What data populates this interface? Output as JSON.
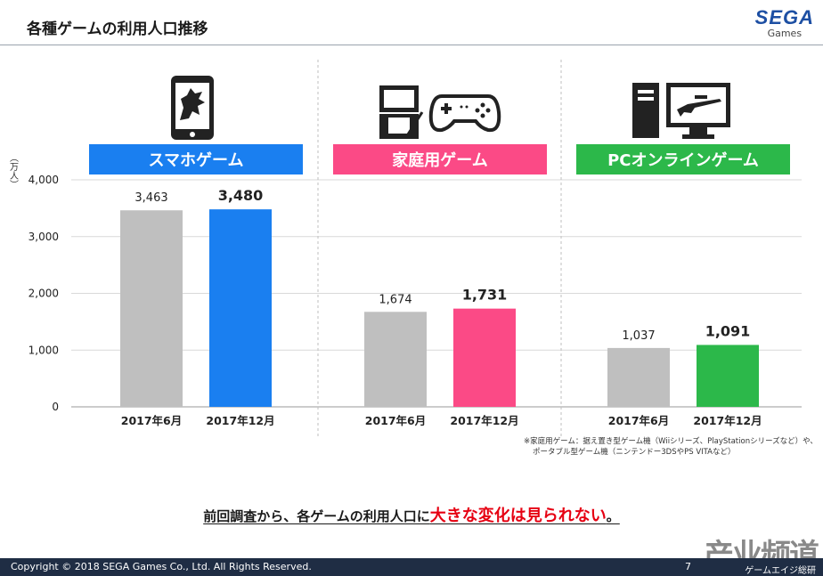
{
  "header": {
    "title": "各種ゲームの利用人口推移",
    "logo_text": "SEGA",
    "logo_sub": "Games"
  },
  "chart_data": {
    "type": "bar",
    "title": "各種ゲームの利用人口推移",
    "ylabel": "（万人）",
    "ylim": [
      0,
      4000
    ],
    "yticks": [
      0,
      1000,
      2000,
      3000,
      4000
    ],
    "ytick_labels": [
      "0",
      "1,000",
      "2,000",
      "3,000",
      "4,000"
    ],
    "groups": [
      {
        "name": "スマホゲーム",
        "color": "#1a7ff0",
        "icon": "smartphone-dragon-icon",
        "bars": [
          {
            "label": "2017年6月",
            "value": 3463,
            "display": "3,463",
            "color": "#bfbfbf",
            "bold": false
          },
          {
            "label": "2017年12月",
            "value": 3480,
            "display": "3,480",
            "color": "#1a7ff0",
            "bold": true
          }
        ]
      },
      {
        "name": "家庭用ゲーム",
        "color": "#fb4a86",
        "icon": "handheld-console-and-gamepad-icon",
        "bars": [
          {
            "label": "2017年6月",
            "value": 1674,
            "display": "1,674",
            "color": "#bfbfbf",
            "bold": false
          },
          {
            "label": "2017年12月",
            "value": 1731,
            "display": "1,731",
            "color": "#fb4a86",
            "bold": true
          }
        ]
      },
      {
        "name": "PCオンラインゲーム",
        "color": "#2cb84a",
        "icon": "desktop-pc-icon",
        "bars": [
          {
            "label": "2017年6月",
            "value": 1037,
            "display": "1,037",
            "color": "#bfbfbf",
            "bold": false
          },
          {
            "label": "2017年12月",
            "value": 1091,
            "display": "1,091",
            "color": "#2cb84a",
            "bold": true
          }
        ]
      }
    ]
  },
  "note": {
    "line1": "※家庭用ゲーム：据え置き型ゲーム機（Wiiシリーズ、PlayStationシリーズなど）や、",
    "line2": "ポータブル型ゲーム機（ニンテンドー3DSやPS VITAなど）"
  },
  "conclusion": {
    "prefix": "前回調査から、各ゲームの利用人口に",
    "highlight": "大きな変化は見られない",
    "suffix": "。"
  },
  "footer": {
    "copyright": "Copyright © 2018 SEGA  Games Co., Ltd. All Rights Reserved.",
    "page": "7"
  },
  "watermark": {
    "main": "产业频道",
    "sub": "ゲームエイジ総研"
  },
  "colors": {
    "accent": "#1d4fa3",
    "highlight": "#e60012",
    "footer_bg": "#1f2d44"
  }
}
